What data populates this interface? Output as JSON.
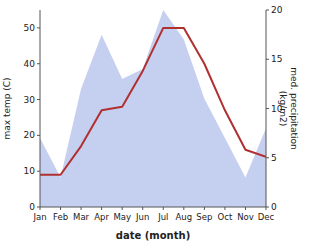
{
  "chart_data": {
    "type": "line",
    "xlabel": "date (month)",
    "ylabel": "max temp (C)",
    "y2label": "med. precipitation\n(kg/m2)",
    "categories": [
      "Jan",
      "Feb",
      "Mar",
      "Apr",
      "May",
      "Jun",
      "Jul",
      "Aug",
      "Sep",
      "Oct",
      "Nov",
      "Dec"
    ],
    "series": [
      {
        "type": "area",
        "axis": "y2",
        "color": "#c5cff0",
        "values": [
          7,
          3,
          12,
          17.5,
          13,
          14,
          20,
          17,
          11,
          7,
          3,
          8
        ]
      },
      {
        "type": "line",
        "color": "#b03030",
        "values": [
          9,
          9,
          17,
          27,
          28,
          38,
          50,
          50,
          40,
          27,
          16,
          14
        ]
      }
    ],
    "ylim": [
      0,
      55
    ],
    "yticks": [
      0,
      10,
      20,
      30,
      40,
      50
    ],
    "y2lim": [
      0,
      20
    ],
    "y2ticks": [
      0,
      5,
      10,
      15,
      20
    ]
  }
}
